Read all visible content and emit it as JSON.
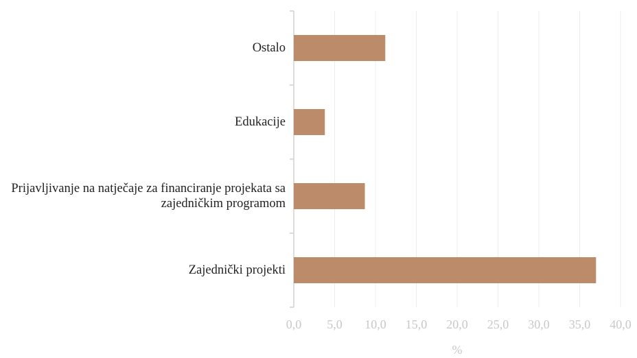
{
  "chart_data": {
    "type": "hbar",
    "categories": [
      "Ostalo",
      "Edukacije",
      "Prijavljivanje na natječaje za financiranje projekata sa zajedničkim programom",
      "Zajednički projekti"
    ],
    "values": [
      11.2,
      3.8,
      8.7,
      37.0
    ],
    "color": "#bc8b6a",
    "xlabel": "%",
    "xlim": [
      0,
      40
    ],
    "xticks": [
      {
        "value": 0,
        "label": "0,0"
      },
      {
        "value": 5,
        "label": "5,0"
      },
      {
        "value": 10,
        "label": "10,0"
      },
      {
        "value": 15,
        "label": "15,0"
      },
      {
        "value": 20,
        "label": "20,0"
      },
      {
        "value": 25,
        "label": "25,0"
      },
      {
        "value": 30,
        "label": "30,0"
      },
      {
        "value": 35,
        "label": "35,0"
      },
      {
        "value": 40,
        "label": "40,0"
      }
    ],
    "grid": true
  }
}
